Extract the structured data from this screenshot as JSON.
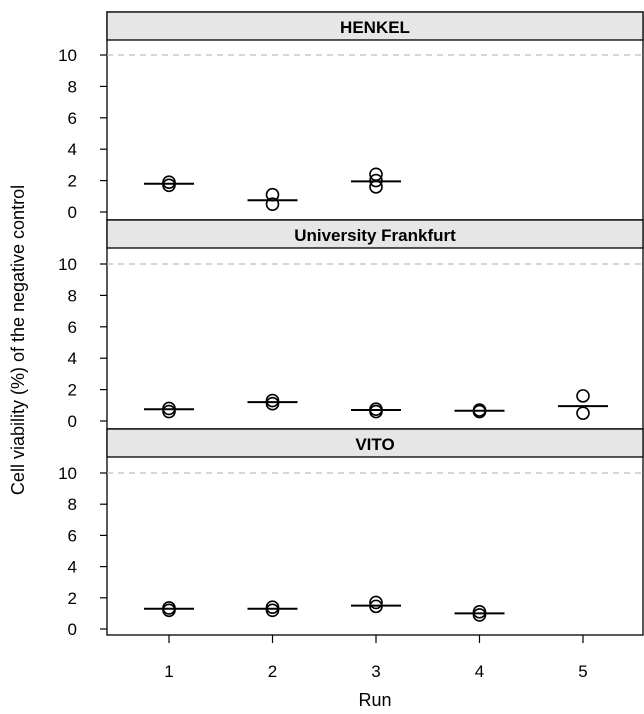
{
  "chart_data": {
    "type": "scatter",
    "xlabel": "Run",
    "ylabel": "Cell viability (%) of the negative control",
    "x_ticks": [
      1,
      2,
      3,
      4,
      5
    ],
    "y_ticks": [
      0,
      2,
      4,
      6,
      8,
      10
    ],
    "ylim": [
      -0.6,
      11
    ],
    "xlim": [
      0.4,
      5.6
    ],
    "reference_line": 10,
    "colors": {
      "strip_fill": "#e6e6e6",
      "reference_line": "#bdbdbd",
      "points": "#000000"
    },
    "panels": [
      {
        "name": "HENKEL",
        "points": [
          {
            "x": 1,
            "y": 1.7
          },
          {
            "x": 1,
            "y": 1.9
          },
          {
            "x": 2,
            "y": 0.5
          },
          {
            "x": 2,
            "y": 1.1
          },
          {
            "x": 3,
            "y": 1.6
          },
          {
            "x": 3,
            "y": 2.0
          },
          {
            "x": 3,
            "y": 2.4
          }
        ],
        "means": [
          {
            "x": 1,
            "y": 1.8
          },
          {
            "x": 2,
            "y": 0.75
          },
          {
            "x": 3,
            "y": 1.95
          }
        ]
      },
      {
        "name": "University Frankfurt",
        "points": [
          {
            "x": 1,
            "y": 0.6
          },
          {
            "x": 1,
            "y": 0.8
          },
          {
            "x": 2,
            "y": 1.1
          },
          {
            "x": 2,
            "y": 1.3
          },
          {
            "x": 3,
            "y": 0.6
          },
          {
            "x": 3,
            "y": 0.75
          },
          {
            "x": 4,
            "y": 0.6
          },
          {
            "x": 4,
            "y": 0.7
          },
          {
            "x": 5,
            "y": 0.5
          },
          {
            "x": 5,
            "y": 1.6
          }
        ],
        "means": [
          {
            "x": 1,
            "y": 0.75
          },
          {
            "x": 2,
            "y": 1.2
          },
          {
            "x": 3,
            "y": 0.7
          },
          {
            "x": 4,
            "y": 0.65
          },
          {
            "x": 5,
            "y": 0.95
          }
        ]
      },
      {
        "name": "VITO",
        "points": [
          {
            "x": 1,
            "y": 1.2
          },
          {
            "x": 1,
            "y": 1.35
          },
          {
            "x": 2,
            "y": 1.2
          },
          {
            "x": 2,
            "y": 1.4
          },
          {
            "x": 3,
            "y": 1.45
          },
          {
            "x": 3,
            "y": 1.7
          },
          {
            "x": 4,
            "y": 0.9
          },
          {
            "x": 4,
            "y": 1.1
          }
        ],
        "means": [
          {
            "x": 1,
            "y": 1.3
          },
          {
            "x": 2,
            "y": 1.3
          },
          {
            "x": 3,
            "y": 1.5
          },
          {
            "x": 4,
            "y": 1.0
          }
        ]
      }
    ]
  }
}
